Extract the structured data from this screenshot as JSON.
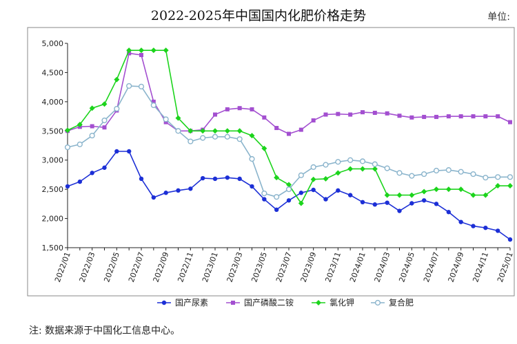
{
  "chart_data": {
    "type": "line",
    "title": "2022-2025年中国国内化肥价格走势",
    "unit_label": "单位:",
    "note": "注: 数据来源于中国化工信息中心。",
    "ylim": [
      1500,
      5000
    ],
    "yticks": [
      1500,
      2000,
      2500,
      3000,
      3500,
      4000,
      4500,
      5000
    ],
    "ytick_labels": [
      "1,500",
      "2,000",
      "2,500",
      "3,000",
      "3,500",
      "4,000",
      "4,500",
      "5,000"
    ],
    "xticks": [
      "2022/01",
      "2022/03",
      "2022/05",
      "2022/07",
      "2022/09",
      "2022/11",
      "2023/01",
      "2023/03",
      "2023/05",
      "2023/07",
      "2023/09",
      "2023/11",
      "2024/01",
      "2024/03",
      "2024/05",
      "2024/07",
      "2024/09",
      "2024/11",
      "2025/01"
    ],
    "x": [
      "2022/01",
      "2022/02",
      "2022/03",
      "2022/04",
      "2022/05",
      "2022/06",
      "2022/07",
      "2022/08",
      "2022/09",
      "2022/10",
      "2022/11",
      "2022/12",
      "2023/01",
      "2023/02",
      "2023/03",
      "2023/04",
      "2023/05",
      "2023/06",
      "2023/07",
      "2023/08",
      "2023/09",
      "2023/10",
      "2023/11",
      "2023/12",
      "2024/01",
      "2024/02",
      "2024/03",
      "2024/04",
      "2024/05",
      "2024/06",
      "2024/07",
      "2024/08",
      "2024/09",
      "2024/10",
      "2024/11",
      "2024/12",
      "2025/01"
    ],
    "legend_position": "bottom",
    "grid": false,
    "series": [
      {
        "name": "国产尿素",
        "color": "#1c2fd6",
        "marker": "circle-filled",
        "values": [
          2550,
          2630,
          2780,
          2870,
          3150,
          3150,
          2680,
          2360,
          2440,
          2480,
          2510,
          2690,
          2680,
          2700,
          2680,
          2550,
          2330,
          2150,
          2310,
          2440,
          2490,
          2330,
          2480,
          2400,
          2280,
          2240,
          2270,
          2130,
          2260,
          2310,
          2250,
          2110,
          1940,
          1870,
          1840,
          1790,
          1640
        ]
      },
      {
        "name": "国产磷酸二铵",
        "color": "#a34fd0",
        "marker": "square-filled",
        "values": [
          3500,
          3570,
          3580,
          3560,
          3850,
          4830,
          4800,
          4000,
          3650,
          3500,
          3500,
          3520,
          3780,
          3870,
          3890,
          3870,
          3730,
          3550,
          3450,
          3520,
          3680,
          3780,
          3790,
          3780,
          3820,
          3810,
          3800,
          3760,
          3730,
          3740,
          3740,
          3750,
          3750,
          3750,
          3750,
          3750,
          3650
        ]
      },
      {
        "name": "氯化钾",
        "color": "#1cd41c",
        "marker": "diamond-filled",
        "values": [
          3510,
          3610,
          3890,
          3960,
          4380,
          4880,
          4880,
          4880,
          4880,
          3720,
          3500,
          3500,
          3500,
          3500,
          3500,
          3420,
          3200,
          2700,
          2580,
          2260,
          2670,
          2680,
          2780,
          2850,
          2850,
          2850,
          2400,
          2400,
          2400,
          2460,
          2500,
          2500,
          2500,
          2400,
          2400,
          2560,
          2560
        ]
      },
      {
        "name": "复合肥",
        "color": "#8ab4cc",
        "marker": "circle-open",
        "values": [
          3220,
          3270,
          3420,
          3680,
          3880,
          4270,
          4260,
          3940,
          3700,
          3500,
          3320,
          3380,
          3400,
          3400,
          3360,
          3020,
          2430,
          2370,
          2500,
          2740,
          2880,
          2920,
          2970,
          3000,
          2980,
          2930,
          2860,
          2780,
          2730,
          2760,
          2820,
          2830,
          2800,
          2760,
          2700,
          2710,
          2710
        ]
      }
    ]
  }
}
